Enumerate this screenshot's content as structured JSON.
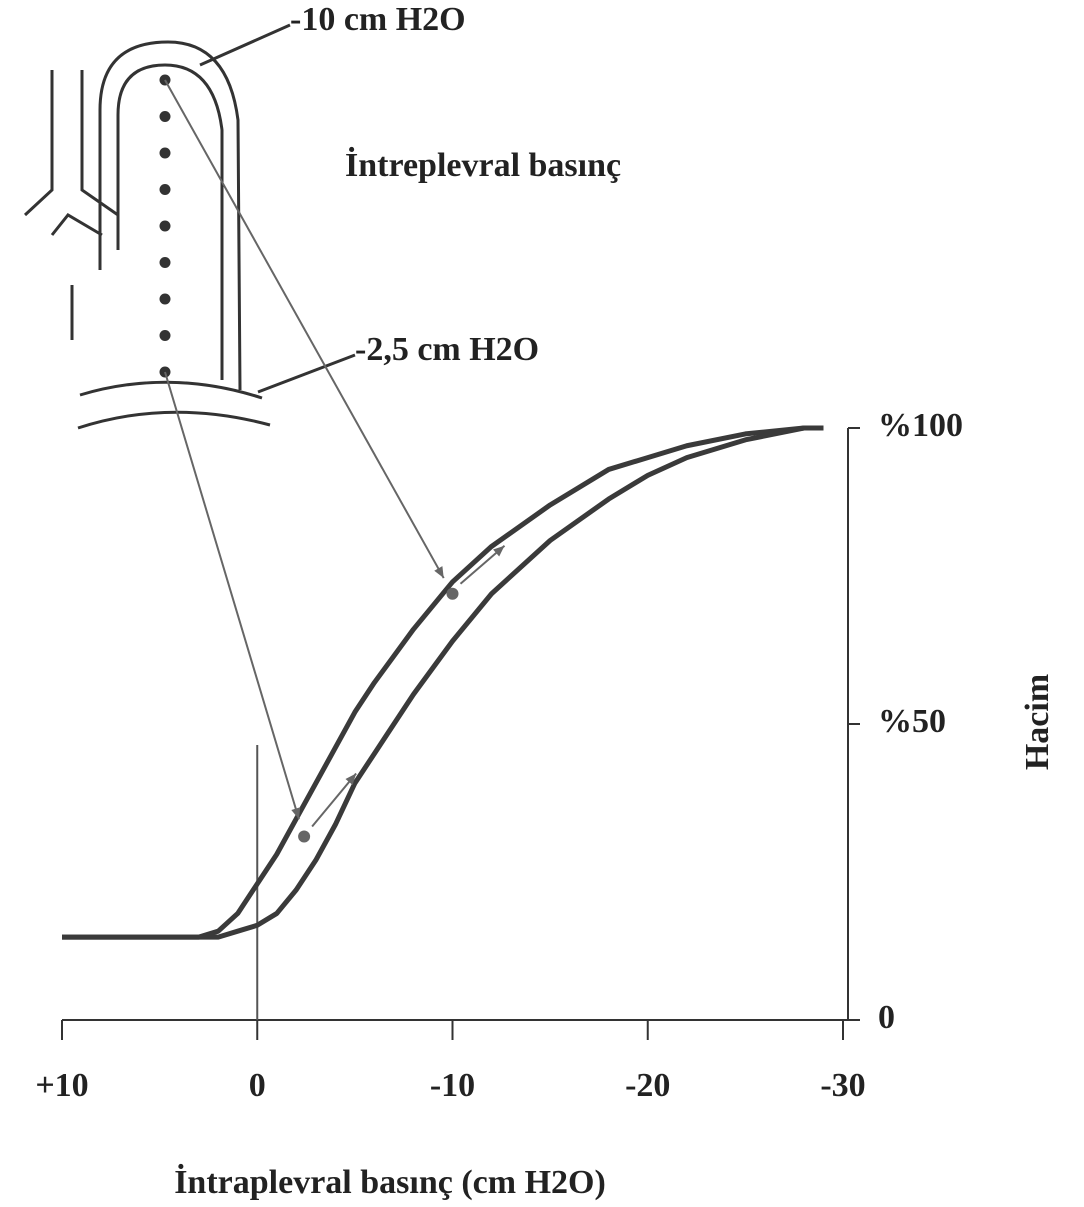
{
  "chart_data": {
    "type": "line",
    "annotations": [
      "-10 cm H2O",
      "İntreplevral basınç",
      "-2,5 cm H2O"
    ],
    "x_label": "İntraplevral basınç (cm H2O)",
    "y_label": "Hacim",
    "x": [
      10,
      5,
      3,
      2,
      1,
      0,
      -1,
      -2,
      -3,
      -4,
      -5,
      -6,
      -8,
      -10,
      -12,
      -15,
      -18,
      -20,
      -22,
      -25,
      -28,
      -29
    ],
    "series": [
      {
        "color": "#3a3a3a",
        "values": [
          14,
          14,
          14,
          15,
          18,
          23,
          28,
          34,
          40,
          46,
          52,
          57,
          66,
          74,
          80,
          87,
          93,
          95,
          97,
          99,
          100,
          100
        ]
      },
      {
        "color": "#3a3a3a",
        "values": [
          14,
          14,
          14,
          14,
          15,
          16,
          18,
          22,
          27,
          33,
          40,
          45,
          55,
          64,
          72,
          81,
          88,
          92,
          95,
          98,
          100,
          100
        ]
      }
    ],
    "markers": [
      {
        "x": -10,
        "y": 72
      },
      {
        "x": -2.4,
        "y": 31
      }
    ],
    "xlim": [
      10,
      -30
    ],
    "xticks": [
      {
        "value": 10,
        "label": "+10"
      },
      0,
      -10,
      -20,
      -30
    ],
    "ylim": [
      0,
      100
    ],
    "yticks": [
      0,
      {
        "value": 50,
        "label": "%50"
      },
      {
        "value": 100,
        "label": "%100"
      }
    ]
  }
}
